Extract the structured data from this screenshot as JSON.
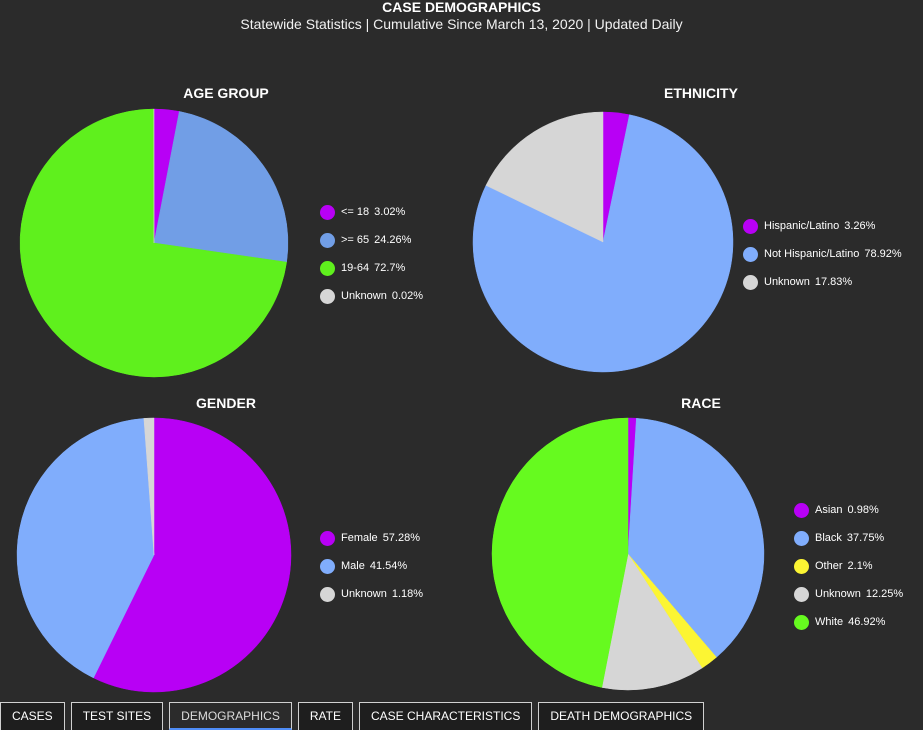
{
  "header": {
    "title": "CASE DEMOGRAPHICS",
    "subtitle": "Statewide Statistics  |  Cumulative Since March 13, 2020  |  Updated Daily"
  },
  "chart_data": [
    {
      "type": "pie",
      "title": "AGE GROUP",
      "legend_position": "right",
      "slices": [
        {
          "label": "<= 18",
          "value": 3.02,
          "value_label": "3.02%",
          "color": "#b800f5"
        },
        {
          "label": ">= 65",
          "value": 24.26,
          "value_label": "24.26%",
          "color": "#719ee6"
        },
        {
          "label": "19-64",
          "value": 72.7,
          "value_label": "72.7%",
          "color": "#5ff01d"
        },
        {
          "label": "Unknown",
          "value": 0.02,
          "value_label": "0.02%",
          "color": "#d6d6d6"
        }
      ]
    },
    {
      "type": "pie",
      "title": "ETHNICITY",
      "legend_position": "right",
      "slices": [
        {
          "label": "Hispanic/Latino",
          "value": 3.26,
          "value_label": "3.26%",
          "color": "#b800f5"
        },
        {
          "label": "Not Hispanic/Latino",
          "value": 78.92,
          "value_label": "78.92%",
          "color": "#80adfc"
        },
        {
          "label": "Unknown",
          "value": 17.83,
          "value_label": "17.83%",
          "color": "#d6d6d6"
        }
      ]
    },
    {
      "type": "pie",
      "title": "GENDER",
      "legend_position": "right",
      "slices": [
        {
          "label": "Female",
          "value": 57.28,
          "value_label": "57.28%",
          "color": "#b800f5"
        },
        {
          "label": "Male",
          "value": 41.54,
          "value_label": "41.54%",
          "color": "#80adfc"
        },
        {
          "label": "Unknown",
          "value": 1.18,
          "value_label": "1.18%",
          "color": "#d6d6d6"
        }
      ]
    },
    {
      "type": "pie",
      "title": "RACE",
      "legend_position": "right",
      "slices": [
        {
          "label": "Asian",
          "value": 0.98,
          "value_label": "0.98%",
          "color": "#b800f5"
        },
        {
          "label": "Black",
          "value": 37.75,
          "value_label": "37.75%",
          "color": "#80adfc"
        },
        {
          "label": "Other",
          "value": 2.1,
          "value_label": "2.1%",
          "color": "#fcf533"
        },
        {
          "label": "Unknown",
          "value": 12.25,
          "value_label": "12.25%",
          "color": "#d6d6d6"
        },
        {
          "label": "White",
          "value": 46.92,
          "value_label": "46.92%",
          "color": "#66fa1f"
        }
      ]
    }
  ],
  "tabs": [
    {
      "label": "CASES",
      "active": false
    },
    {
      "label": "TEST SITES",
      "active": false
    },
    {
      "label": "DEMOGRAPHICS",
      "active": true
    },
    {
      "label": "RATE",
      "active": false
    },
    {
      "label": "CASE CHARACTERISTICS",
      "active": false
    },
    {
      "label": "DEATH DEMOGRAPHICS",
      "active": false
    }
  ]
}
